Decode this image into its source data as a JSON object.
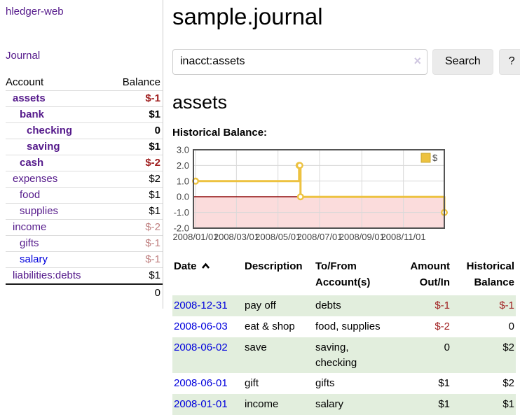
{
  "app": {
    "brand": "hledger-web",
    "nav": {
      "journal": "Journal"
    }
  },
  "sidebar": {
    "accounts_table": {
      "account_header": "Account",
      "balance_header": "Balance",
      "rows": [
        {
          "account": "assets",
          "balance": "$-1",
          "depth": 1,
          "matched": true,
          "balance_tone": "neg-strong"
        },
        {
          "account": "bank",
          "balance": "$1",
          "depth": 2,
          "matched": true,
          "balance_tone": ""
        },
        {
          "account": "checking",
          "balance": "0",
          "depth": 3,
          "matched": true,
          "balance_tone": ""
        },
        {
          "account": "saving",
          "balance": "$1",
          "depth": 3,
          "matched": true,
          "balance_tone": ""
        },
        {
          "account": "cash",
          "balance": "$-2",
          "depth": 2,
          "matched": true,
          "balance_tone": "neg-strong"
        },
        {
          "account": "expenses",
          "balance": "$2",
          "depth": 1,
          "matched": false,
          "balance_tone": ""
        },
        {
          "account": "food",
          "balance": "$1",
          "depth": 2,
          "matched": false,
          "balance_tone": ""
        },
        {
          "account": "supplies",
          "balance": "$1",
          "depth": 2,
          "matched": false,
          "balance_tone": ""
        },
        {
          "account": "income",
          "balance": "$-2",
          "depth": 1,
          "matched": false,
          "balance_tone": "neg-soft"
        },
        {
          "account": "gifts",
          "balance": "$-1",
          "depth": 2,
          "matched": false,
          "balance_tone": "neg-soft"
        },
        {
          "account": "salary",
          "balance": "$-1",
          "depth": 2,
          "matched": false,
          "balance_tone": "neg-soft",
          "link_style": "unvisited"
        },
        {
          "account": "liabilities:debts",
          "balance": "$1",
          "depth": 1,
          "matched": false,
          "balance_tone": ""
        }
      ],
      "total": "0"
    }
  },
  "main": {
    "title": "sample.journal",
    "search": {
      "value": "inacct:assets",
      "clear_icon": "×",
      "search_button": "Search",
      "help_button": "?"
    },
    "account_heading": "assets",
    "chart_heading": "Historical Balance:"
  },
  "chart_data": {
    "type": "line",
    "step": true,
    "title": "Historical Balance:",
    "series": [
      {
        "name": "$",
        "color": "#edc240",
        "points": [
          {
            "x": "2008-01-01",
            "y": 1
          },
          {
            "x": "2008-06-01",
            "y": 2
          },
          {
            "x": "2008-06-02",
            "y": 2
          },
          {
            "x": "2008-06-03",
            "y": 0
          },
          {
            "x": "2008-12-31",
            "y": -1
          }
        ]
      }
    ],
    "x_ticks": [
      "2008/01/01",
      "2008/03/01",
      "2008/05/01",
      "2008/07/01",
      "2008/09/01",
      "2008/11/01"
    ],
    "y_ticks": [
      "3.0",
      "2.0",
      "1.0",
      "0.0",
      "-1.0",
      "-2.0"
    ],
    "ylim": [
      -2,
      3
    ],
    "xlim": [
      "2008-01-01",
      "2008-12-31"
    ],
    "grid": true,
    "legend_position": "top-right",
    "legend": [
      {
        "label": "$",
        "color": "#edc240"
      }
    ],
    "negative_region_color": "#fbdcdc",
    "zero_line_color": "#8b0000",
    "border_color": "#545454",
    "gridline_color": "#d9d9d9"
  },
  "register": {
    "headers": {
      "date": "Date",
      "description": "Description",
      "accounts": "To/From Account(s)",
      "amount": "Amount Out/In",
      "balance": "Historical Balance"
    },
    "rows": [
      {
        "date": "2008-12-31",
        "description": "pay off",
        "accounts": "debts",
        "amount": "$-1",
        "amount_tone": "neg",
        "balance": "$-1",
        "balance_tone": "neg"
      },
      {
        "date": "2008-06-03",
        "description": "eat & shop",
        "accounts": "food, supplies",
        "amount": "$-2",
        "amount_tone": "neg",
        "balance": "0",
        "balance_tone": ""
      },
      {
        "date": "2008-06-02",
        "description": "save",
        "accounts": "saving, checking",
        "amount": "0",
        "amount_tone": "",
        "balance": "$2",
        "balance_tone": ""
      },
      {
        "date": "2008-06-01",
        "description": "gift",
        "accounts": "gifts",
        "amount": "$1",
        "amount_tone": "",
        "balance": "$2",
        "balance_tone": ""
      },
      {
        "date": "2008-01-01",
        "description": "income",
        "accounts": "salary",
        "amount": "$1",
        "amount_tone": "",
        "balance": "$1",
        "balance_tone": ""
      }
    ]
  },
  "colors": {
    "link_visited_purple": "#551a8b",
    "link_blue": "#0000dd",
    "negative_strong": "#a02020",
    "negative_soft": "#bf7f7f",
    "row_green": "#e2eedd"
  }
}
